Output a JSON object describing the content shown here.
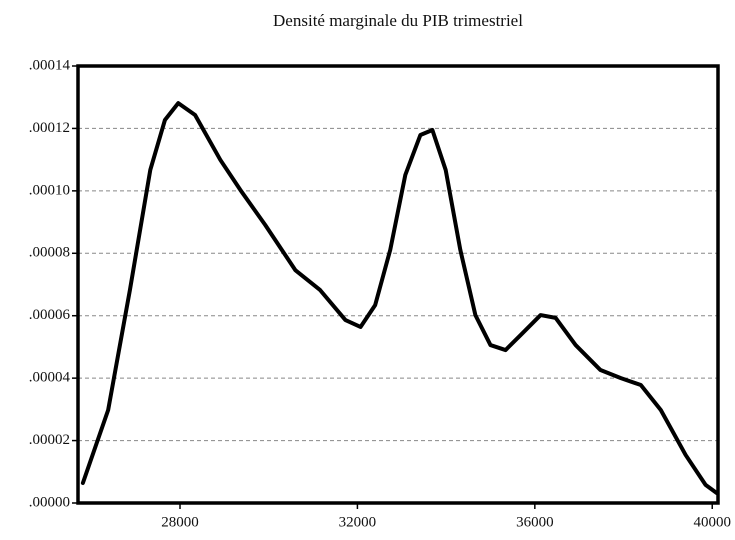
{
  "chart_data": {
    "type": "line",
    "title": "Densité marginale du PIB trimestriel",
    "color": "#000000",
    "grid": true,
    "xlim": [
      25700,
      40130
    ],
    "xticks": [
      28000,
      32000,
      36000,
      40000
    ],
    "ylim": [
      0,
      0.00014
    ],
    "yticks": [
      {
        "value": 0,
        "label": ".00000"
      },
      {
        "value": 2e-05,
        "label": ".00002"
      },
      {
        "value": 4e-05,
        "label": ".00004"
      },
      {
        "value": 6e-05,
        "label": ".00006"
      },
      {
        "value": 8e-05,
        "label": ".00008"
      },
      {
        "value": 0.0001,
        "label": ".00010"
      },
      {
        "value": 0.00012,
        "label": ".00012"
      },
      {
        "value": 0.00014,
        "label": ".00014"
      }
    ],
    "x": [
      25810,
      26380,
      26870,
      27330,
      27660,
      27960,
      28340,
      28910,
      29360,
      29920,
      30600,
      31160,
      31730,
      32070,
      32400,
      32740,
      33080,
      33420,
      33690,
      33990,
      34320,
      34660,
      35000,
      35340,
      35680,
      36130,
      36470,
      36920,
      37480,
      37940,
      38390,
      38840,
      39400,
      39850,
      40100
    ],
    "values": [
      6.4e-06,
      2.98e-05,
      6.82e-05,
      0.0001067,
      0.0001227,
      0.0001281,
      0.0001243,
      0.0001099,
      0.0001003,
      8.91e-05,
      7.46e-05,
      6.82e-05,
      5.86e-05,
      5.64e-05,
      6.34e-05,
      8.11e-05,
      0.0001051,
      0.0001179,
      0.0001195,
      0.0001067,
      8.11e-05,
      6.02e-05,
      5.06e-05,
      4.9e-05,
      5.38e-05,
      6.02e-05,
      5.93e-05,
      5.06e-05,
      4.26e-05,
      4e-05,
      3.78e-05,
      2.98e-05,
      1.54e-05,
      5.8e-06,
      3.2e-06
    ]
  }
}
